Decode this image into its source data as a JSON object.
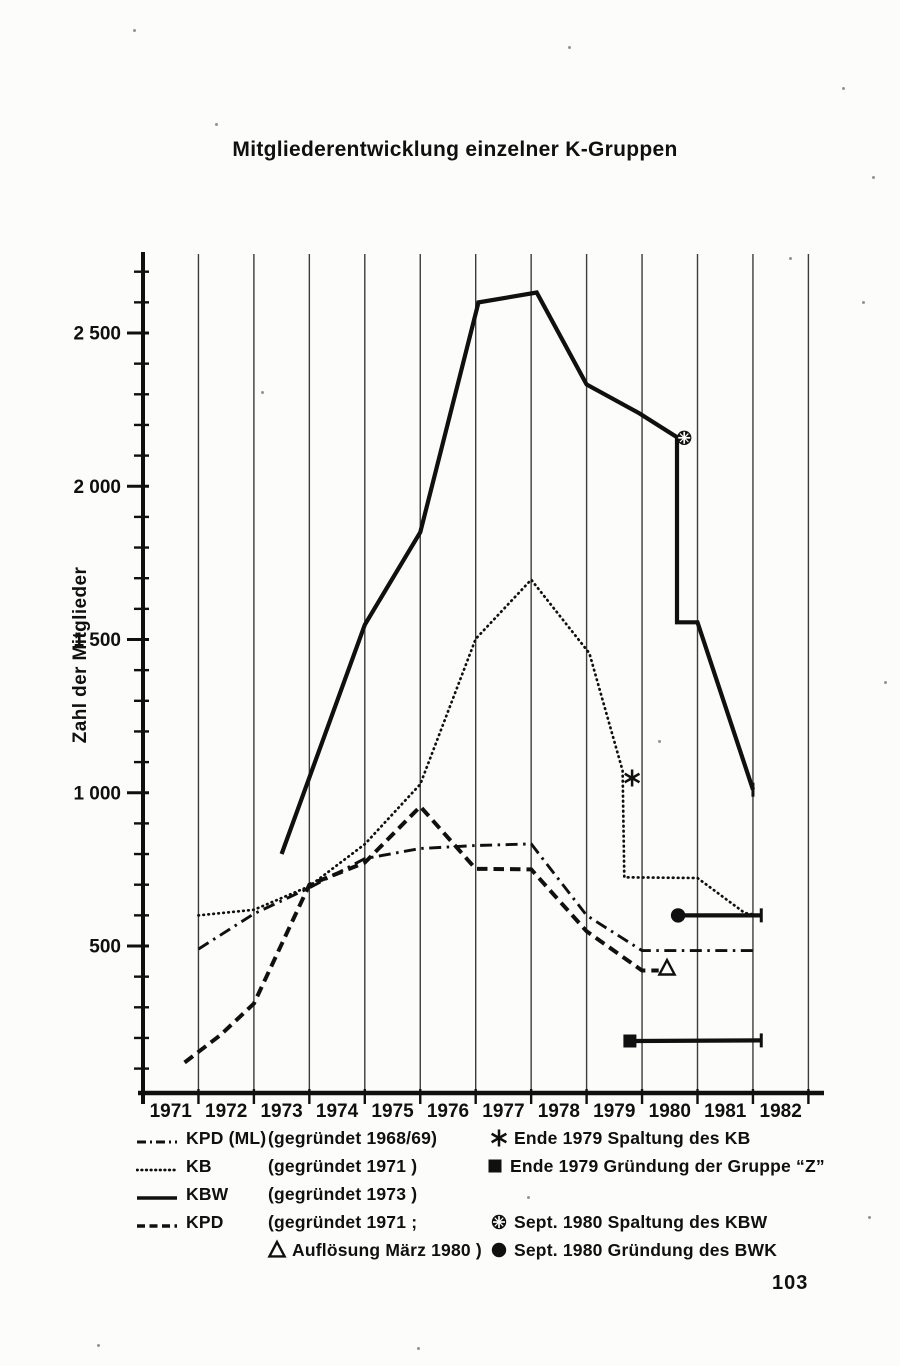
{
  "page": {
    "title": "Mitgliederentwicklung einzelner K-Gruppen",
    "page_number": "103"
  },
  "chart_data": {
    "type": "line",
    "title": "Mitgliederentwicklung einzelner K-Gruppen",
    "xlabel": "",
    "ylabel": "Zahl der Mitglieder",
    "ylim": [
      0,
      2800
    ],
    "xlim": [
      1971,
      1983
    ],
    "grid": "vertical-yearly",
    "x_tick_labels": [
      "1971",
      "1972",
      "1973",
      "1974",
      "1975",
      "1976",
      "1977",
      "1978",
      "1979",
      "1980",
      "1981",
      "1982"
    ],
    "y_major_ticks": [
      {
        "value": 500,
        "label": "500"
      },
      {
        "value": 1000,
        "label": "1 000"
      },
      {
        "value": 1500,
        "label": "1 500"
      },
      {
        "value": 2000,
        "label": "2 000"
      },
      {
        "value": 2500,
        "label": "2 500"
      }
    ],
    "y_minor_tick_step": 100,
    "series": [
      {
        "name": "KPD (ML)",
        "style": "dashdot",
        "points": [
          [
            1972.0,
            490
          ],
          [
            1973.0,
            605
          ],
          [
            1974.0,
            690
          ],
          [
            1975.0,
            785
          ],
          [
            1976.0,
            818
          ],
          [
            1977.0,
            828
          ],
          [
            1978.0,
            833
          ],
          [
            1979.0,
            600
          ],
          [
            1980.0,
            485
          ],
          [
            1982.07,
            485
          ]
        ]
      },
      {
        "name": "KB",
        "style": "dotted",
        "points": [
          [
            1972.0,
            600
          ],
          [
            1973.0,
            618
          ],
          [
            1974.0,
            695
          ],
          [
            1975.0,
            832
          ],
          [
            1976.0,
            1028
          ],
          [
            1977.0,
            1502
          ],
          [
            1978.0,
            1695
          ],
          [
            1979.05,
            1455
          ],
          [
            1979.65,
            1072
          ],
          [
            1979.68,
            724
          ],
          [
            1981.0,
            722
          ],
          [
            1981.85,
            608
          ],
          [
            1982.1,
            600
          ]
        ]
      },
      {
        "name": "KBW",
        "style": "solid",
        "end_tick": true,
        "points": [
          [
            1973.5,
            800
          ],
          [
            1975.0,
            1548
          ],
          [
            1976.0,
            1850
          ],
          [
            1977.05,
            2600
          ],
          [
            1978.1,
            2632
          ],
          [
            1979.0,
            2332
          ],
          [
            1979.95,
            2238
          ],
          [
            1980.63,
            2160
          ],
          [
            1980.63,
            1556
          ],
          [
            1981.0,
            1556
          ],
          [
            1982.0,
            1010
          ]
        ]
      },
      {
        "name": "KPD",
        "style": "dashed",
        "points": [
          [
            1971.75,
            120
          ],
          [
            1972.4,
            210
          ],
          [
            1973.0,
            312
          ],
          [
            1974.0,
            700
          ],
          [
            1975.0,
            772
          ],
          [
            1976.0,
            955
          ],
          [
            1977.0,
            752
          ],
          [
            1978.0,
            750
          ],
          [
            1979.0,
            548
          ],
          [
            1980.0,
            420
          ],
          [
            1980.3,
            420
          ]
        ]
      },
      {
        "name": "Gruppe „Z“",
        "style": "solid",
        "end_tick": true,
        "points": [
          [
            1979.78,
            190
          ],
          [
            1982.15,
            192
          ]
        ]
      },
      {
        "name": "BWK",
        "style": "solid",
        "end_tick": true,
        "points": [
          [
            1980.65,
            600
          ],
          [
            1982.15,
            600
          ]
        ]
      }
    ],
    "markers": [
      {
        "symbol": "asterisk",
        "x": 1979.82,
        "value": 1048,
        "label": "Ende 1979 Spaltung des KB"
      },
      {
        "symbol": "square",
        "x": 1979.78,
        "value": 190,
        "label": "Ende 1979 Gründung der Gruppe “Z”"
      },
      {
        "symbol": "circle-cross",
        "x": 1980.76,
        "value": 2158,
        "label": "Sept. 1980 Spaltung des KBW"
      },
      {
        "symbol": "circle",
        "x": 1980.65,
        "value": 600,
        "label": "Sept. 1980 Gründung des BWK"
      },
      {
        "symbol": "triangle",
        "x": 1980.45,
        "value": 428,
        "label": "Auflösung März 1980"
      }
    ]
  },
  "legend": {
    "left": [
      {
        "style": "dashdot",
        "name": "KPD (ML)",
        "note": "(gegründet 1968/69)"
      },
      {
        "style": "dotted",
        "name": "KB",
        "note": "(gegründet 1971 )"
      },
      {
        "style": "solid",
        "name": "KBW",
        "note": "(gegründet 1973 )"
      },
      {
        "style": "dashed",
        "name": "KPD",
        "note": "(gegründet 1971 ;"
      },
      {
        "symbol": "triangle",
        "name": "",
        "note": "Auflösung März 1980 )"
      }
    ],
    "right": [
      {
        "symbol": "asterisk",
        "text": "Ende 1979  Spaltung des KB"
      },
      {
        "symbol": "square",
        "text": "Ende 1979  Gründung der  Gruppe “Z”"
      },
      {
        "symbol": "circle-cross",
        "text": "Sept. 1980  Spaltung des KBW"
      },
      {
        "symbol": "circle",
        "text": "Sept. 1980  Gründung des BWK"
      }
    ]
  }
}
